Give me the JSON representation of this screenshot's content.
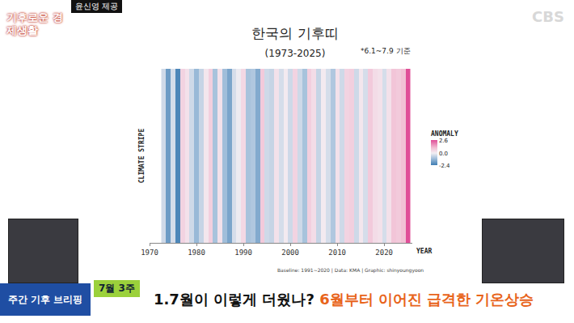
{
  "chart_data": {
    "type": "heatmap",
    "title": "한국의 기후띠",
    "subtitle": "(1973-2025)",
    "note": "*6.1~7.9 기준",
    "x_label": "YEAR",
    "y_label": "CLIMATE STRIPE",
    "source": "Baseline: 1991~2020 | Data: KMA | Graphic: shinyoungyoon",
    "colorbar_title": "ANOMALY",
    "x": [
      1973,
      1974,
      1975,
      1976,
      1977,
      1978,
      1979,
      1980,
      1981,
      1982,
      1983,
      1984,
      1985,
      1986,
      1987,
      1988,
      1989,
      1990,
      1991,
      1992,
      1993,
      1994,
      1995,
      1996,
      1997,
      1998,
      1999,
      2000,
      2001,
      2002,
      2003,
      2004,
      2005,
      2006,
      2007,
      2008,
      2009,
      2010,
      2011,
      2012,
      2013,
      2014,
      2015,
      2016,
      2017,
      2018,
      2019,
      2020,
      2021,
      2022,
      2023,
      2024,
      2025
    ],
    "values": [
      -0.5,
      -1.8,
      -0.4,
      -2.2,
      0.6,
      0.3,
      -0.5,
      -1.2,
      -0.6,
      0.2,
      0.7,
      -1.0,
      0.3,
      -1.1,
      -1.6,
      -0.4,
      -0.1,
      0.5,
      -1.0,
      -0.9,
      -1.5,
      0.8,
      -0.5,
      -0.6,
      0.3,
      -0.4,
      0.1,
      -0.5,
      0.6,
      -0.5,
      -1.0,
      0.7,
      0.4,
      -0.6,
      0.1,
      -0.4,
      -0.9,
      0.3,
      -0.5,
      0.6,
      0.7,
      -0.5,
      0.2,
      -0.4,
      0.8,
      0.4,
      0.3,
      -0.4,
      0.3,
      0.9,
      0.8,
      1.0,
      2.6
    ],
    "xlim": [
      1970,
      2026
    ],
    "xticks": [
      1970,
      1980,
      1990,
      2000,
      2010,
      2020
    ],
    "zlim": [
      -2.4,
      2.6
    ],
    "zticks": [
      -2.4,
      {
        "value": 0,
        "label": "0.0"
      },
      2.6
    ],
    "tick_labels": "x",
    "grid": false
  },
  "overlay": {
    "credit": "윤신영 제공",
    "brand": "CBS",
    "logo": "기후로운 경제생활",
    "segment": "주간 기후 브리핑",
    "tag": "7월 3주",
    "headline": [
      "1.7월이 이렇게 더웠나?",
      "6월부터 이어진 급격한 기온상승"
    ]
  }
}
